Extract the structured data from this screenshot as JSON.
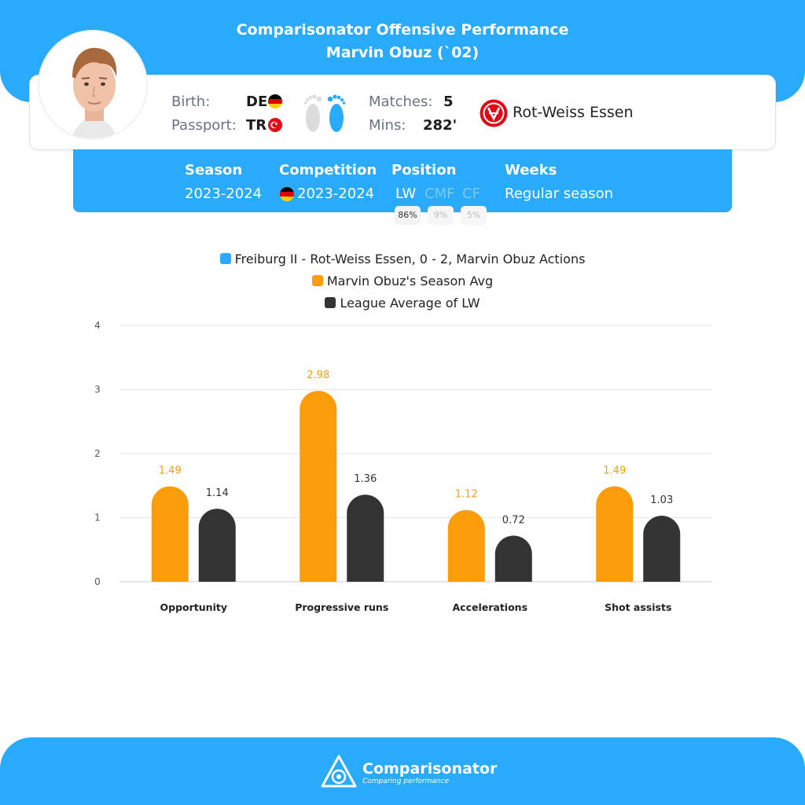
{
  "header": {
    "title": "Comparisonator Offensive Performance",
    "subtitle": "Marvin Obuz (`02)"
  },
  "player": {
    "birth_label": "Birth:",
    "birth_value": "DE",
    "passport_label": "Passport:",
    "passport_value": "TR",
    "matches_label": "Matches:",
    "matches_value": "5",
    "mins_label": "Mins:",
    "mins_value": "282'",
    "club": "Rot-Weiss Essen",
    "preferred_foot": "right"
  },
  "season_panel": {
    "season_label": "Season",
    "season_value": "2023-2024",
    "competition_label": "Competition",
    "competition_value": "2023-2024",
    "position_label": "Position",
    "positions": [
      {
        "name": "LW",
        "pct": "86%",
        "active": true
      },
      {
        "name": "CMF",
        "pct": "9%",
        "active": false
      },
      {
        "name": "CF",
        "pct": "5%",
        "active": false
      }
    ],
    "weeks_label": "Weeks",
    "weeks_value": "Regular season"
  },
  "legend": [
    {
      "label": "Freiburg II - Rot-Weiss Essen, 0 - 2, Marvin Obuz Actions",
      "color": "#2aaafa"
    },
    {
      "label": "Marvin Obuz's Season Avg",
      "color": "#fb9d0b"
    },
    {
      "label": "League Average of LW",
      "color": "#333333"
    }
  ],
  "chart_data": {
    "type": "bar",
    "categories": [
      "Opportunity",
      "Progressive runs",
      "Accelerations",
      "Shot assists"
    ],
    "series": [
      {
        "name": "Marvin Obuz's Season Avg",
        "values": [
          1.49,
          2.98,
          1.12,
          1.49
        ],
        "labels": [
          "1.49",
          "2.98",
          "1.12",
          "1.49"
        ],
        "color": "#fb9d0b",
        "label_color": "#fb9d0b"
      },
      {
        "name": "League Average of LW",
        "values": [
          1.14,
          1.36,
          0.72,
          1.03
        ],
        "labels": [
          "1.14",
          "1.36",
          "0.72",
          "1.03"
        ],
        "color": "#333333",
        "label_color": "#333333"
      }
    ],
    "ylim": [
      0,
      4
    ],
    "yticks": [
      0,
      1,
      2,
      3,
      4
    ],
    "grid": true
  },
  "footer": {
    "brand": "Comparisonator",
    "tagline": "Comparing performance"
  }
}
